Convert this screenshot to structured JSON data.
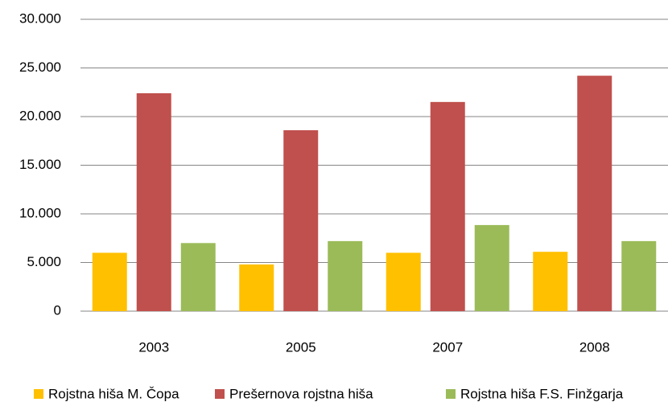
{
  "chart_data": {
    "type": "bar",
    "categories": [
      "2003",
      "2005",
      "2007",
      "2008"
    ],
    "series": [
      {
        "name": "Rojstna hiša M. Čopa",
        "color": "#ffc000",
        "values": [
          6000,
          4800,
          6000,
          6100
        ]
      },
      {
        "name": "Prešernova rojstna hiša",
        "color": "#c0504d",
        "values": [
          22400,
          18600,
          21500,
          24200
        ]
      },
      {
        "name": "Rojstna hiša F.S. Finžgarja",
        "color": "#9bbb59",
        "values": [
          7000,
          7200,
          8850,
          7200
        ]
      }
    ],
    "ylim": [
      0,
      30000
    ],
    "yticks": [
      0,
      {
        "value": 5000,
        "label": "5.000"
      },
      {
        "value": 10000,
        "label": "10.000"
      },
      {
        "value": 15000,
        "label": "15.000"
      },
      {
        "value": 20000,
        "label": "20.000"
      },
      {
        "value": 25000,
        "label": "25.000"
      },
      {
        "value": 30000,
        "label": "30.000"
      }
    ],
    "grid": true,
    "legend": "bottom"
  }
}
